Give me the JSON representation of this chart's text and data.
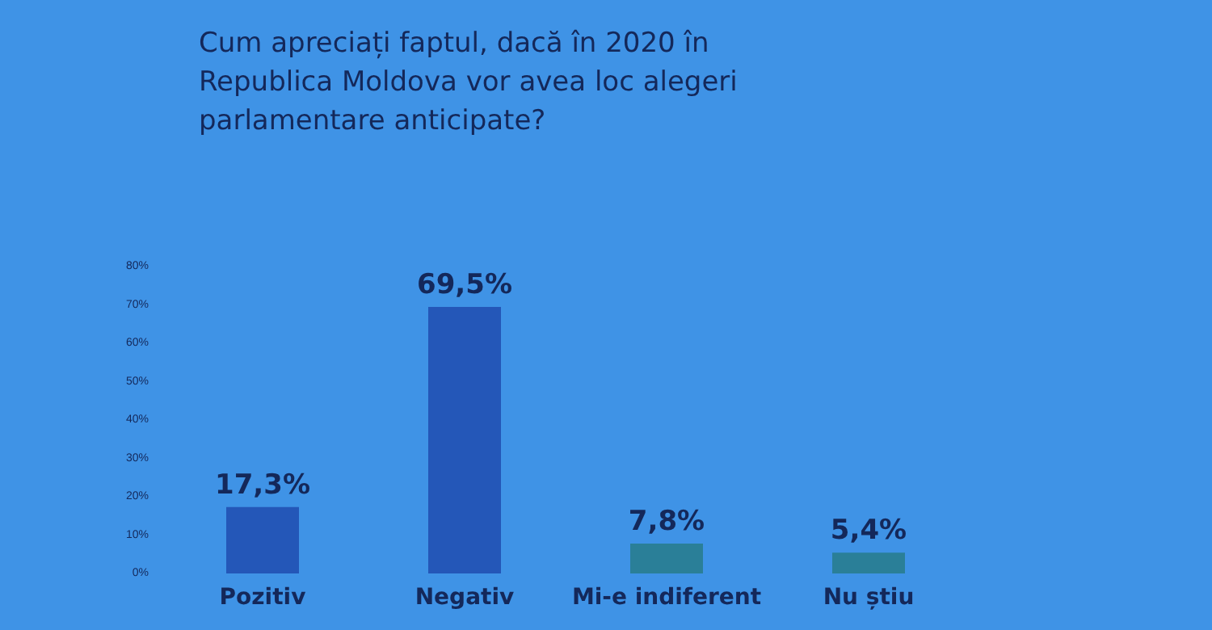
{
  "chart_data": {
    "type": "bar",
    "title": "Cum apreciați faptul, dacă în 2020 în Republica Moldova vor avea loc alegeri parlamentare anticipate?",
    "categories": [
      "Pozitiv",
      "Negativ",
      "Mi-e indiferent",
      "Nu știu"
    ],
    "values": [
      17.3,
      69.5,
      7.8,
      5.4
    ],
    "colors": [
      "#2457b8",
      "#2457b8",
      "#2a7f98",
      "#2a7f98"
    ],
    "value_labels": [
      "17,3%",
      "69,5%",
      "7,8%",
      "5,4%"
    ],
    "ylim": [
      0,
      80
    ],
    "yticks": [
      {
        "value": 0,
        "label": "0%"
      },
      {
        "value": 10,
        "label": "10%"
      },
      {
        "value": 20,
        "label": "20%"
      },
      {
        "value": 30,
        "label": "30%"
      },
      {
        "value": 40,
        "label": "40%"
      },
      {
        "value": 50,
        "label": "50%"
      },
      {
        "value": 60,
        "label": "60%"
      },
      {
        "value": 70,
        "label": "70%"
      },
      {
        "value": 80,
        "label": "80%"
      }
    ],
    "grid": false
  }
}
